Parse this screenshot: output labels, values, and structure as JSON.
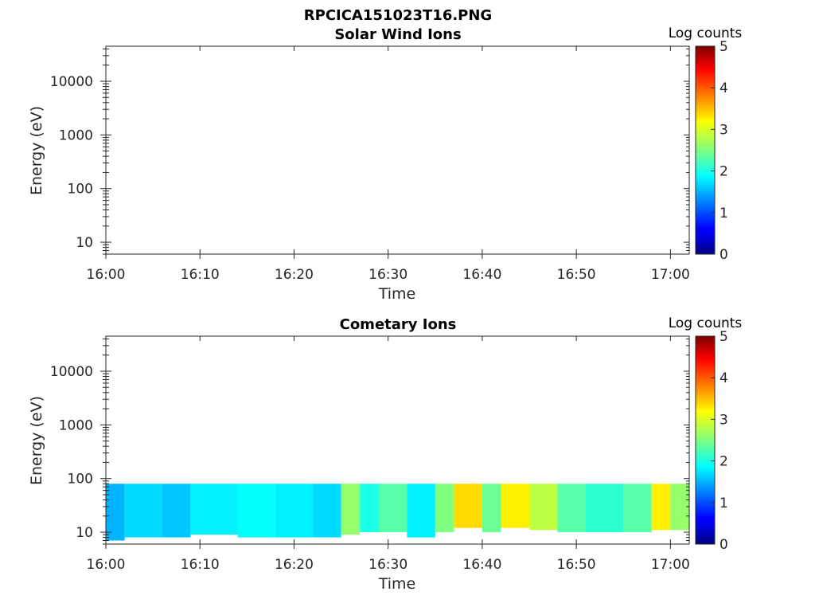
{
  "figure": {
    "filename_title": "RPCICA151023T16.PNG"
  },
  "chart_data": [
    {
      "type": "heatmap",
      "title": "Solar Wind Ions",
      "xlabel": "Time",
      "ylabel": "Energy (eV)",
      "yscale": "log",
      "ylim": [
        6,
        45000
      ],
      "yticks": [
        {
          "value": 10,
          "label": "10"
        },
        {
          "value": 100,
          "label": "100"
        },
        {
          "value": 1000,
          "label": "1000"
        },
        {
          "value": 10000,
          "label": "10000"
        }
      ],
      "xlim": [
        "16:00",
        "17:02"
      ],
      "xticks": [
        "16:00",
        "16:10",
        "16:20",
        "16:30",
        "16:40",
        "16:50",
        "17:00"
      ],
      "colorbar": {
        "label": "Log counts",
        "range": [
          0,
          5
        ],
        "ticks": [
          "0",
          "1",
          "2",
          "3",
          "4",
          "5"
        ],
        "colormap": "jet"
      },
      "bands": []
    },
    {
      "type": "heatmap",
      "title": "Cometary Ions",
      "xlabel": "Time",
      "ylabel": "Energy (eV)",
      "yscale": "log",
      "ylim": [
        6,
        45000
      ],
      "yticks": [
        {
          "value": 10,
          "label": "10"
        },
        {
          "value": 100,
          "label": "100"
        },
        {
          "value": 1000,
          "label": "1000"
        },
        {
          "value": 10000,
          "label": "10000"
        }
      ],
      "xlim": [
        "16:00",
        "17:02"
      ],
      "xticks": [
        "16:00",
        "16:10",
        "16:20",
        "16:30",
        "16:40",
        "16:50",
        "17:00"
      ],
      "colorbar": {
        "label": "Log counts",
        "range": [
          0,
          5
        ],
        "ticks": [
          "0",
          "1",
          "2",
          "3",
          "4",
          "5"
        ],
        "colormap": "jet"
      },
      "bands": [
        {
          "start": "16:00",
          "end": "16:02",
          "emin": 7,
          "emax": 80,
          "log_counts": 1.5
        },
        {
          "start": "16:02",
          "end": "16:06",
          "emin": 8,
          "emax": 80,
          "log_counts": 1.7
        },
        {
          "start": "16:06",
          "end": "16:09",
          "emin": 8,
          "emax": 80,
          "log_counts": 1.6
        },
        {
          "start": "16:09",
          "end": "16:14",
          "emin": 9,
          "emax": 80,
          "log_counts": 1.8
        },
        {
          "start": "16:14",
          "end": "16:18",
          "emin": 8,
          "emax": 80,
          "log_counts": 1.9
        },
        {
          "start": "16:18",
          "end": "16:22",
          "emin": 8,
          "emax": 80,
          "log_counts": 1.8
        },
        {
          "start": "16:22",
          "end": "16:25",
          "emin": 8,
          "emax": 80,
          "log_counts": 1.7
        },
        {
          "start": "16:25",
          "end": "16:27",
          "emin": 9,
          "emax": 80,
          "log_counts": 2.6
        },
        {
          "start": "16:27",
          "end": "16:29",
          "emin": 10,
          "emax": 80,
          "log_counts": 2.0
        },
        {
          "start": "16:29",
          "end": "16:32",
          "emin": 10,
          "emax": 80,
          "log_counts": 2.3
        },
        {
          "start": "16:32",
          "end": "16:35",
          "emin": 8,
          "emax": 80,
          "log_counts": 1.8
        },
        {
          "start": "16:35",
          "end": "16:37",
          "emin": 10,
          "emax": 80,
          "log_counts": 2.5
        },
        {
          "start": "16:37",
          "end": "16:40",
          "emin": 12,
          "emax": 80,
          "log_counts": 3.3
        },
        {
          "start": "16:40",
          "end": "16:42",
          "emin": 10,
          "emax": 80,
          "log_counts": 2.4
        },
        {
          "start": "16:42",
          "end": "16:45",
          "emin": 12,
          "emax": 80,
          "log_counts": 3.2
        },
        {
          "start": "16:45",
          "end": "16:48",
          "emin": 11,
          "emax": 80,
          "log_counts": 2.8
        },
        {
          "start": "16:48",
          "end": "16:51",
          "emin": 10,
          "emax": 80,
          "log_counts": 2.3
        },
        {
          "start": "16:51",
          "end": "16:55",
          "emin": 10,
          "emax": 80,
          "log_counts": 2.1
        },
        {
          "start": "16:55",
          "end": "16:58",
          "emin": 10,
          "emax": 80,
          "log_counts": 2.3
        },
        {
          "start": "16:58",
          "end": "17:00",
          "emin": 11,
          "emax": 80,
          "log_counts": 3.2
        },
        {
          "start": "17:00",
          "end": "17:02",
          "emin": 11,
          "emax": 80,
          "log_counts": 2.6
        }
      ]
    }
  ]
}
